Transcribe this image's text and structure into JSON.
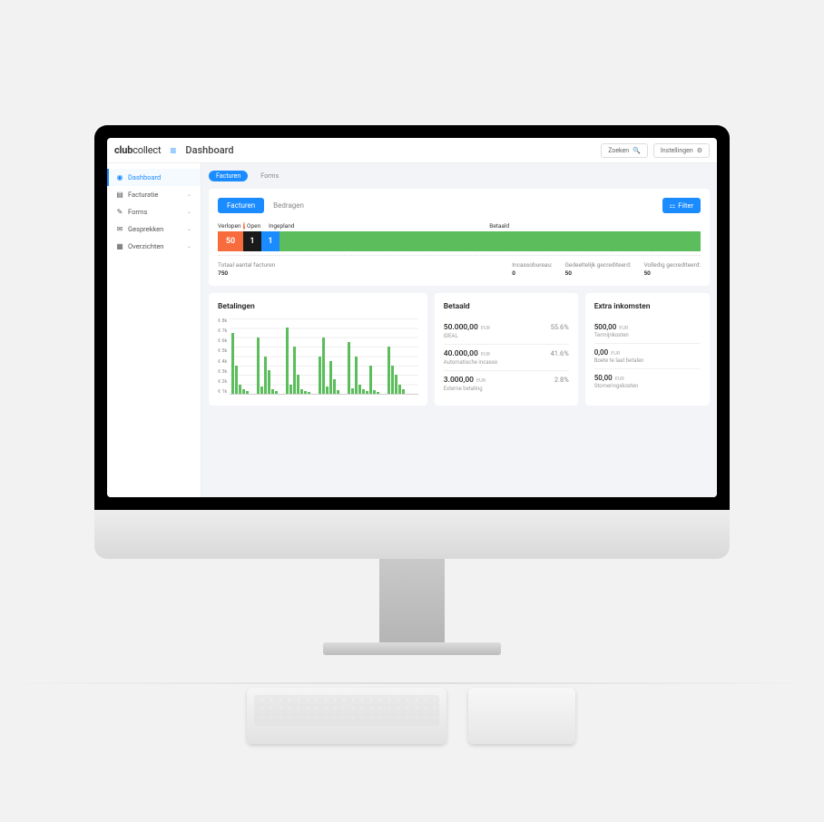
{
  "header": {
    "logo_bold": "club",
    "logo_thin": "collect",
    "page_title": "Dashboard",
    "search_placeholder": "Zoeken",
    "settings_label": "Instellingen"
  },
  "sidebar": {
    "items": [
      {
        "icon": "◉",
        "label": "Dashboard",
        "active": true
      },
      {
        "icon": "▤",
        "label": "Facturatie",
        "expandable": true
      },
      {
        "icon": "✎",
        "label": "Forms",
        "expandable": true
      },
      {
        "icon": "✉",
        "label": "Gesprekken",
        "expandable": true
      },
      {
        "icon": "▦",
        "label": "Overzichten",
        "expandable": true
      }
    ]
  },
  "tabs": {
    "primary": "Facturen",
    "secondary": "Forms"
  },
  "invoices_card": {
    "subtabs": {
      "active": "Facturen",
      "inactive": "Bedragen"
    },
    "filter_label": "Filter",
    "statuses": {
      "verlopen": {
        "label": "Verlopen",
        "value": "50",
        "color": "#f76b3c",
        "badge": "1"
      },
      "open": {
        "label": "Open",
        "value": "1",
        "color": "#1a1a1a"
      },
      "ingepland": {
        "label": "Ingepland",
        "value": "1",
        "color": "#1a8cff"
      },
      "betaald": {
        "label": "Betaald",
        "color": "#5bbd5b"
      }
    },
    "stats": {
      "total_label": "Totaal aantal facturen",
      "total_value": "750",
      "incasso_label": "Incassobureau:",
      "incasso_value": "0",
      "partial_label": "Gedeeltelijk gecrediteerd:",
      "partial_value": "50",
      "full_label": "Volledig gecrediteerd:",
      "full_value": "50"
    }
  },
  "payments_panel": {
    "title": "Betalingen",
    "chart": {
      "type": "bar",
      "y_ticks": [
        "€ 8k",
        "€ 7k",
        "€ 6k",
        "€ 5k",
        "€ 4k",
        "€ 3k",
        "€ 2k",
        "€ 1k"
      ],
      "ylim": [
        0,
        8
      ],
      "bar_color": "#5bbd5b",
      "grid_color": "#eeeeee",
      "values": [
        6.5,
        3,
        1,
        0.5,
        0.3,
        0,
        0,
        6,
        0.8,
        4,
        2.5,
        0.5,
        0.3,
        0,
        0,
        7,
        1,
        5,
        2,
        0.5,
        0.3,
        0.2,
        0,
        0,
        4,
        6,
        0.8,
        3.5,
        1.5,
        0.4,
        0,
        0,
        5.5,
        0.6,
        4,
        1,
        0.5,
        0.3,
        3,
        0.4,
        0.2,
        0,
        0,
        5,
        3,
        2,
        1,
        0.5
      ]
    }
  },
  "paid_panel": {
    "title": "Betaald",
    "rows": [
      {
        "amount": "50.000,00",
        "cur": "EUR",
        "pct": "55.6%",
        "sub": "iDEAL"
      },
      {
        "amount": "40.000,00",
        "cur": "EUR",
        "pct": "41.6%",
        "sub": "Automatische incasso"
      },
      {
        "amount": "3.000,00",
        "cur": "EUR",
        "pct": "2.8%",
        "sub": "Externe betaling"
      }
    ]
  },
  "income_panel": {
    "title": "Extra inkomsten",
    "rows": [
      {
        "amount": "500,00",
        "cur": "EUR",
        "sub": "Termijnkosten"
      },
      {
        "amount": "0,00",
        "cur": "EUR",
        "sub": "Boete te laat betalen"
      },
      {
        "amount": "50,00",
        "cur": "EUR",
        "sub": "Storneringskosten"
      }
    ]
  }
}
